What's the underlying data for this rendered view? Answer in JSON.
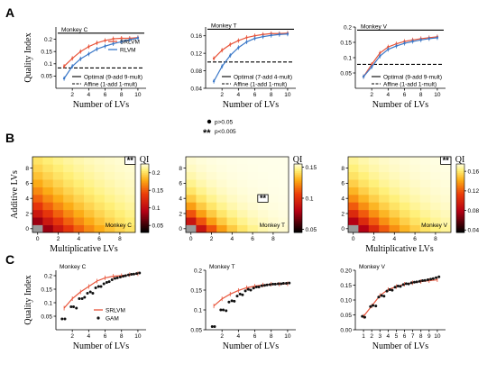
{
  "panels": {
    "A": "A",
    "B": "B",
    "C": "C"
  },
  "colors": {
    "srlvm": "#e8543a",
    "rlvm": "#3b78c8",
    "gam": "#111111"
  },
  "x_label": "Number of LVs",
  "y_label_quality": "Quality Index",
  "significance": {
    "p1": "p>0.05",
    "p2": "p<0.005",
    "mark": "**"
  },
  "chart_data": [
    {
      "id": "A1",
      "type": "line",
      "title": "Monkey C",
      "xlabel": "Number of LVs",
      "ylabel": "Quality Index",
      "xlim": [
        0,
        11
      ],
      "ylim": [
        0.0,
        0.25
      ],
      "xticks": [
        2,
        4,
        6,
        8,
        10
      ],
      "yticks": [
        0.05,
        0.1,
        0.15,
        0.2
      ],
      "ytick_labels": [
        "0.05",
        "0.1",
        "0.15",
        "0.2"
      ],
      "x": [
        1,
        2,
        3,
        4,
        5,
        6,
        7,
        8,
        9,
        10
      ],
      "series": [
        {
          "name": "SRLVM",
          "values": [
            0.09,
            0.122,
            0.15,
            0.17,
            0.185,
            0.195,
            0.202,
            0.204,
            0.204,
            0.207
          ]
        },
        {
          "name": "RLVM",
          "values": [
            0.04,
            0.09,
            0.12,
            0.14,
            0.16,
            0.172,
            0.182,
            0.19,
            0.198,
            0.205
          ]
        }
      ],
      "hlines": [
        {
          "name": "Optimal (9-add 9-mult)",
          "y": 0.225,
          "style": "solid"
        },
        {
          "name": "Affine     (1-add 1-mult)",
          "y": 0.083,
          "style": "dashed"
        }
      ],
      "legend_series_pos": "top-right",
      "legend_lines_pos": "bottom-right"
    },
    {
      "id": "A2",
      "type": "line",
      "title": "Monkey T",
      "xlabel": "Number of LVs",
      "ylabel": "",
      "xlim": [
        0,
        11
      ],
      "ylim": [
        0.04,
        0.18
      ],
      "xticks": [
        2,
        4,
        6,
        8,
        10
      ],
      "yticks": [
        0.04,
        0.08,
        0.12,
        0.16
      ],
      "ytick_labels": [
        "0.04",
        "0.08",
        "0.12",
        "0.16"
      ],
      "x": [
        1,
        2,
        3,
        4,
        5,
        6,
        7,
        8,
        9,
        10
      ],
      "series": [
        {
          "name": "SRLVM",
          "values": [
            0.108,
            0.127,
            0.14,
            0.149,
            0.156,
            0.16,
            0.163,
            0.165,
            0.165,
            0.166
          ]
        },
        {
          "name": "RLVM",
          "values": [
            0.056,
            0.09,
            0.115,
            0.133,
            0.146,
            0.154,
            0.158,
            0.161,
            0.163,
            0.164
          ]
        }
      ],
      "hlines": [
        {
          "name": "Optimal (7-add 4-mult)",
          "y": 0.175,
          "style": "solid"
        },
        {
          "name": "Affine     (1-add 1-mult)",
          "y": 0.1,
          "style": "dashed"
        }
      ],
      "legend_lines_pos": "bottom-right"
    },
    {
      "id": "A3",
      "type": "line",
      "title": "Monkey V",
      "xlabel": "Number of LVs",
      "ylabel": "",
      "xlim": [
        0,
        11
      ],
      "ylim": [
        0.0,
        0.2
      ],
      "xticks": [
        2,
        4,
        6,
        8,
        10
      ],
      "yticks": [
        0.05,
        0.1,
        0.15,
        0.2
      ],
      "ytick_labels": [
        "0.05",
        "0.1",
        "0.15",
        "0.2"
      ],
      "x": [
        1,
        2,
        3,
        4,
        5,
        6,
        7,
        8,
        9,
        10
      ],
      "series": [
        {
          "name": "SRLVM",
          "values": [
            0.038,
            0.078,
            0.115,
            0.135,
            0.145,
            0.153,
            0.158,
            0.162,
            0.165,
            0.168
          ]
        },
        {
          "name": "RLVM",
          "values": [
            0.038,
            0.07,
            0.105,
            0.127,
            0.138,
            0.147,
            0.153,
            0.158,
            0.162,
            0.165
          ]
        }
      ],
      "hlines": [
        {
          "name": "Optimal (9-add 9-mult)",
          "y": 0.19,
          "style": "solid"
        },
        {
          "name": "Affine     (1-add 1-mult)",
          "y": 0.078,
          "style": "dashed"
        }
      ],
      "legend_lines_pos": "bottom-right"
    },
    {
      "id": "B1",
      "type": "heatmap",
      "title": "Monkey C",
      "xlabel": "Multiplicative LVs",
      "ylabel": "Additive LVs",
      "xticks": [
        0,
        2,
        4,
        6,
        8
      ],
      "yticks": [
        0,
        2,
        4,
        6,
        8
      ],
      "grid_size": 10,
      "vmin": 0.03,
      "vmax": 0.225,
      "colorbar_label": "QI",
      "colorbar_ticks": [
        0.05,
        0.1,
        0.15,
        0.2
      ],
      "colorbar_tick_labels": [
        "0.05",
        "0.1",
        "0.15",
        "0.2"
      ],
      "best_cell": [
        9,
        9
      ],
      "best_mark": "**",
      "missing_cell": [
        0,
        0
      ],
      "scale": "srlvm-grid"
    },
    {
      "id": "B2",
      "type": "heatmap",
      "title": "Monkey T",
      "xlabel": "",
      "ylabel": "",
      "xticks": [
        0,
        2,
        4,
        6,
        8
      ],
      "yticks": [
        0,
        2,
        4,
        6,
        8
      ],
      "grid_size": 10,
      "vmin": 0.045,
      "vmax": 0.155,
      "colorbar_label": "QI",
      "colorbar_ticks": [
        0.05,
        0.1,
        0.15
      ],
      "colorbar_tick_labels": [
        "0.05",
        "0.1",
        "0.15"
      ],
      "best_cell": [
        4,
        7
      ],
      "best_mark": "**",
      "missing_cell": [
        0,
        0
      ],
      "scale": "srlvm-grid"
    },
    {
      "id": "B3",
      "type": "heatmap",
      "title": "Monkey V",
      "xlabel": "Multiplicative LVs",
      "ylabel": "",
      "xticks": [
        0,
        2,
        4,
        6,
        8
      ],
      "yticks": [
        0,
        2,
        4,
        6,
        8
      ],
      "grid_size": 10,
      "vmin": 0.035,
      "vmax": 0.175,
      "colorbar_label": "QI",
      "colorbar_ticks": [
        0.04,
        0.08,
        0.12,
        0.16
      ],
      "colorbar_tick_labels": [
        "0.04",
        "0.08",
        "0.12",
        "0.16"
      ],
      "best_cell": [
        9,
        9
      ],
      "best_mark": "**",
      "missing_cell": [
        0,
        0
      ],
      "scale": "srlvm-grid"
    },
    {
      "id": "C1",
      "type": "scatter",
      "title": "Monkey C",
      "xlabel": "Number of LVs",
      "ylabel": "Quality Index",
      "xlim": [
        0,
        11
      ],
      "ylim": [
        0.0,
        0.22
      ],
      "xticks": [
        2,
        4,
        6,
        8,
        10
      ],
      "yticks": [
        0.05,
        0.1,
        0.15,
        0.2
      ],
      "ytick_labels": [
        "0.05",
        "0.1",
        "0.15",
        "0.2"
      ],
      "srlvm_x": [
        1,
        2,
        3,
        4,
        5,
        6,
        7,
        8,
        9,
        10
      ],
      "srlvm": [
        0.08,
        0.115,
        0.14,
        0.16,
        0.18,
        0.192,
        0.198,
        0.2,
        0.204,
        0.207
      ],
      "gam_points": [
        [
          0.75,
          0.04
        ],
        [
          1.1,
          0.04
        ],
        [
          1.85,
          0.085
        ],
        [
          2.15,
          0.085
        ],
        [
          2.5,
          0.08
        ],
        [
          2.85,
          0.115
        ],
        [
          3.2,
          0.115
        ],
        [
          3.5,
          0.12
        ],
        [
          3.85,
          0.135
        ],
        [
          4.2,
          0.14
        ],
        [
          4.5,
          0.135
        ],
        [
          4.85,
          0.155
        ],
        [
          5.2,
          0.16
        ],
        [
          5.5,
          0.16
        ],
        [
          5.85,
          0.17
        ],
        [
          6.2,
          0.175
        ],
        [
          6.5,
          0.178
        ],
        [
          6.85,
          0.185
        ],
        [
          7.2,
          0.19
        ],
        [
          7.5,
          0.192
        ],
        [
          7.85,
          0.195
        ],
        [
          8.2,
          0.198
        ],
        [
          8.5,
          0.2
        ],
        [
          8.85,
          0.203
        ],
        [
          9.2,
          0.205
        ],
        [
          9.5,
          0.206
        ],
        [
          9.85,
          0.208
        ],
        [
          10.2,
          0.21
        ]
      ],
      "legend": [
        "SRLVM",
        "GAM"
      ]
    },
    {
      "id": "C2",
      "type": "scatter",
      "title": "Monkey T",
      "xlabel": "Number of LVs",
      "ylabel": "",
      "xlim": [
        0,
        11
      ],
      "ylim": [
        0.05,
        0.2
      ],
      "xticks": [
        2,
        4,
        6,
        8,
        10
      ],
      "yticks": [
        0.05,
        0.1,
        0.15,
        0.2
      ],
      "ytick_labels": [
        "0.05",
        "0.1",
        "0.15",
        "0.2"
      ],
      "srlvm_x": [
        1,
        2,
        3,
        4,
        5,
        6,
        7,
        8,
        9,
        10
      ],
      "srlvm": [
        0.11,
        0.128,
        0.14,
        0.149,
        0.156,
        0.16,
        0.163,
        0.165,
        0.165,
        0.166
      ],
      "gam_points": [
        [
          0.8,
          0.058
        ],
        [
          1.1,
          0.058
        ],
        [
          1.85,
          0.1
        ],
        [
          2.15,
          0.1
        ],
        [
          2.5,
          0.098
        ],
        [
          2.85,
          0.12
        ],
        [
          3.2,
          0.123
        ],
        [
          3.5,
          0.122
        ],
        [
          3.85,
          0.135
        ],
        [
          4.2,
          0.14
        ],
        [
          4.5,
          0.138
        ],
        [
          4.85,
          0.148
        ],
        [
          5.2,
          0.152
        ],
        [
          5.5,
          0.15
        ],
        [
          5.85,
          0.155
        ],
        [
          6.2,
          0.158
        ],
        [
          6.5,
          0.158
        ],
        [
          6.85,
          0.161
        ],
        [
          7.2,
          0.162
        ],
        [
          7.5,
          0.163
        ],
        [
          7.85,
          0.164
        ],
        [
          8.2,
          0.165
        ],
        [
          8.5,
          0.165
        ],
        [
          8.85,
          0.166
        ],
        [
          9.2,
          0.166
        ],
        [
          9.5,
          0.167
        ],
        [
          9.85,
          0.167
        ],
        [
          10.2,
          0.168
        ]
      ]
    },
    {
      "id": "C3",
      "type": "scatter",
      "title": "Monkey V",
      "xlabel": "Number of LVs",
      "ylabel": "",
      "xlim": [
        0,
        11
      ],
      "ylim": [
        0.0,
        0.2
      ],
      "xticks": [
        1,
        2,
        3,
        4,
        5,
        6,
        7,
        8,
        9,
        10
      ],
      "yticks": [
        0.0,
        0.05,
        0.1,
        0.15,
        0.2
      ],
      "ytick_labels": [
        "0.00",
        "0.05",
        "0.10",
        "0.15",
        "0.20"
      ],
      "srlvm_x": [
        1,
        2,
        3,
        4,
        5,
        6,
        7,
        8,
        9,
        10
      ],
      "srlvm": [
        0.045,
        0.08,
        0.115,
        0.135,
        0.145,
        0.153,
        0.158,
        0.162,
        0.165,
        0.168
      ],
      "gam_points": [
        [
          0.85,
          0.045
        ],
        [
          1.15,
          0.042
        ],
        [
          1.85,
          0.078
        ],
        [
          2.15,
          0.082
        ],
        [
          2.5,
          0.08
        ],
        [
          2.85,
          0.11
        ],
        [
          3.2,
          0.115
        ],
        [
          3.5,
          0.113
        ],
        [
          3.85,
          0.13
        ],
        [
          4.2,
          0.135
        ],
        [
          4.5,
          0.133
        ],
        [
          4.85,
          0.143
        ],
        [
          5.2,
          0.147
        ],
        [
          5.5,
          0.146
        ],
        [
          5.85,
          0.152
        ],
        [
          6.2,
          0.155
        ],
        [
          6.5,
          0.154
        ],
        [
          6.85,
          0.158
        ],
        [
          7.2,
          0.16
        ],
        [
          7.5,
          0.161
        ],
        [
          7.85,
          0.163
        ],
        [
          8.2,
          0.165
        ],
        [
          8.5,
          0.166
        ],
        [
          8.85,
          0.168
        ],
        [
          9.2,
          0.17
        ],
        [
          9.5,
          0.172
        ],
        [
          9.85,
          0.175
        ],
        [
          10.2,
          0.178
        ]
      ]
    }
  ]
}
